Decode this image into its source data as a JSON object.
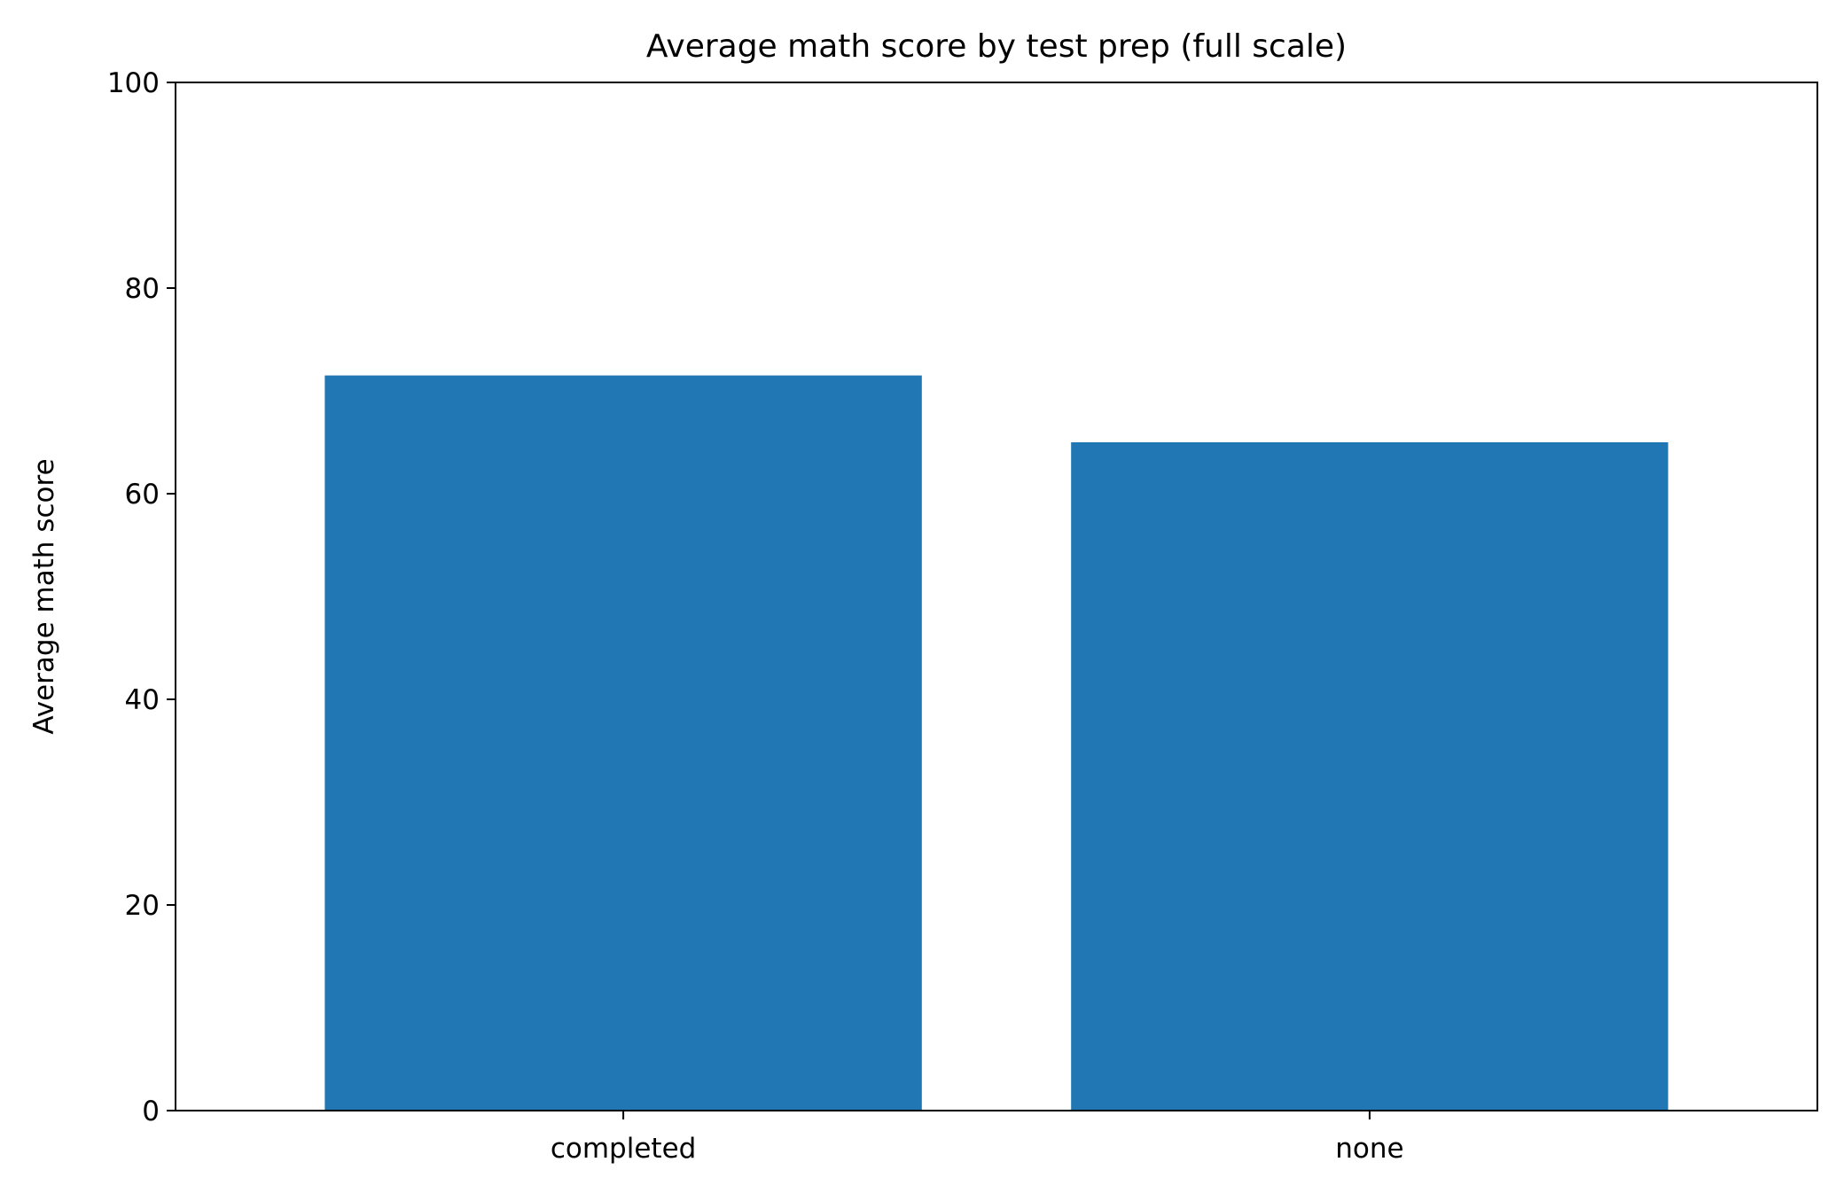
{
  "chart_data": {
    "type": "bar",
    "title": "Average math score by test prep (full scale)",
    "xlabel": "",
    "ylabel": "Average math score",
    "categories": [
      "completed",
      "none"
    ],
    "values": [
      71.5,
      65.0
    ],
    "ylim": [
      0,
      100
    ],
    "yticks": [
      0,
      20,
      40,
      60,
      80,
      100
    ],
    "grid": false,
    "legend": "none",
    "bar_color": "#2077b4"
  }
}
